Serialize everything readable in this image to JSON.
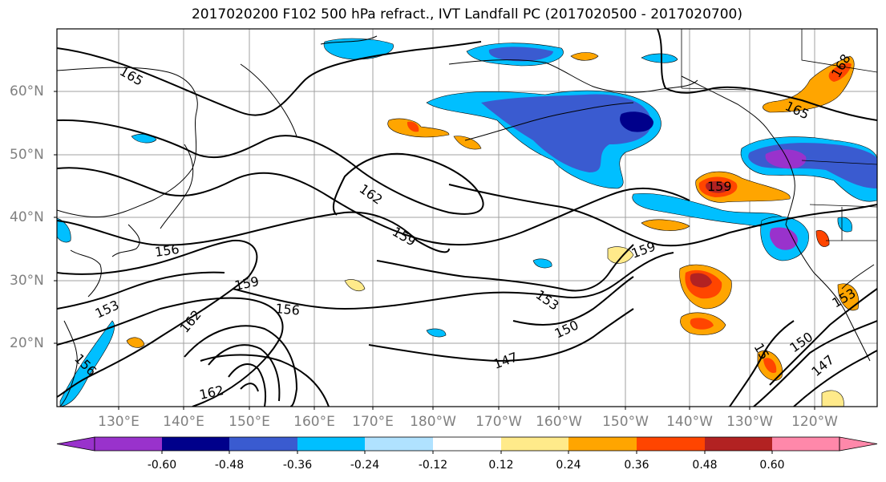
{
  "title": "2017020200 F102 500 hPa refract., IVT Landfall PC (2017020500 - 2017020700)",
  "lat_labels": [
    "60°N",
    "50°N",
    "40°N",
    "30°N",
    "20°N"
  ],
  "lon_labels": [
    "130°E",
    "140°E",
    "150°E",
    "160°E",
    "170°E",
    "180°W",
    "170°W",
    "160°W",
    "150°W",
    "140°W",
    "130°W",
    "120°W"
  ],
  "contour_labels": [
    "165",
    "165",
    "162",
    "159",
    "159",
    "159",
    "159",
    "156",
    "156",
    "156",
    "153",
    "153",
    "153",
    "162",
    "162",
    "150",
    "150",
    "147",
    "147",
    "168",
    "15"
  ],
  "colorbar": {
    "colors": [
      "#9932cc",
      "#00008b",
      "#3a5bd0",
      "#00bfff",
      "#b0e2ff",
      "#ffffff",
      "#ffea8a",
      "#ffa500",
      "#ff4500",
      "#b22222",
      "#ff88aa"
    ],
    "tick_labels": [
      "-0.60",
      "-0.48",
      "-0.36",
      "-0.24",
      "-0.12",
      "0.12",
      "0.24",
      "0.36",
      "0.48",
      "0.60"
    ]
  }
}
